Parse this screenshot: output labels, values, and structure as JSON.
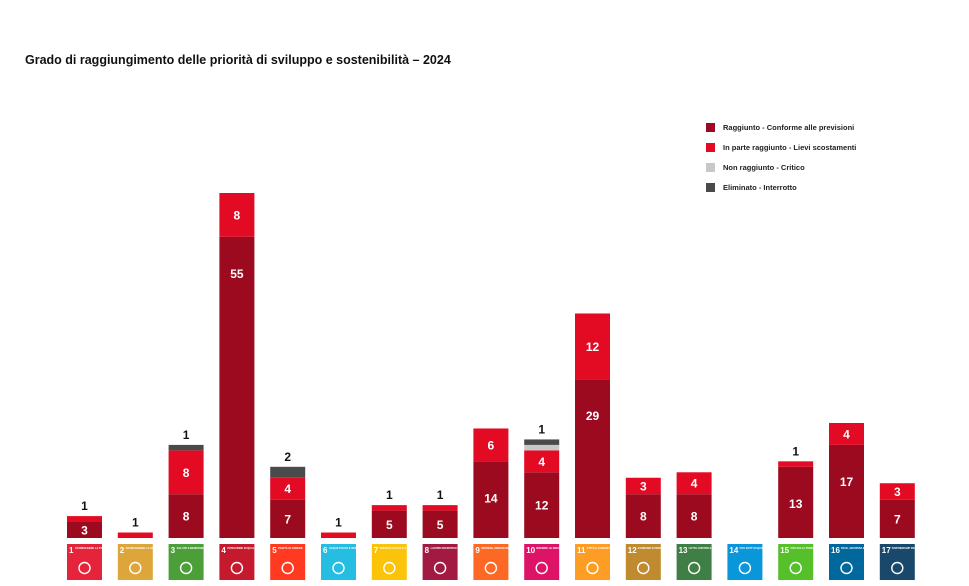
{
  "chart_data": {
    "type": "bar",
    "stacked": true,
    "title": "Grado di raggiungimento delle priorità di sviluppo e sostenibilità – 2024",
    "xlabel": "",
    "ylabel": "",
    "ylim": [
      0,
      63
    ],
    "grid": false,
    "legend_position": "top-right",
    "categories": [
      "1",
      "2",
      "3",
      "4",
      "5",
      "6",
      "7",
      "8",
      "9",
      "10",
      "11",
      "12",
      "13",
      "14",
      "15",
      "16",
      "17"
    ],
    "category_labels": [
      "Sconfiggere la povertà",
      "Sconfiggere la fame",
      "Salute e benessere",
      "Istruzione di qualità",
      "Parità di genere",
      "Acqua pulita e servizi igienico-sanitari",
      "Energia pulita e accessibile",
      "Lavoro dignitoso e crescita economica",
      "Imprese, innovazione e infrastrutture",
      "Ridurre le disuguaglianze",
      "Città e comunità sostenibili",
      "Consumo e produzione responsabili",
      "Lotta contro il cambiamento climatico",
      "Vita sott'acqua",
      "Vita sulla terra",
      "Pace, giustizia e istituzioni solide",
      "Partnership per gli obiettivi"
    ],
    "icon_colors": [
      "#e5243b",
      "#dda63a",
      "#4c9f38",
      "#c5192d",
      "#ff3a21",
      "#26bde2",
      "#fcc30b",
      "#a21942",
      "#fd6925",
      "#dd1367",
      "#fd9d24",
      "#bf8b2e",
      "#3f7e44",
      "#0a97d9",
      "#56c02b",
      "#00689d",
      "#19486a"
    ],
    "series": [
      {
        "name": "Raggiunto - Conforme alle previsioni",
        "color": "#9b0a1e",
        "values": [
          3,
          0,
          8,
          55,
          7,
          0,
          5,
          5,
          14,
          12,
          29,
          8,
          8,
          0,
          13,
          17,
          7
        ]
      },
      {
        "name": "In parte raggiunto - Lievi scostamenti",
        "color": "#e30a24",
        "values": [
          1,
          1,
          8,
          8,
          4,
          1,
          1,
          1,
          6,
          4,
          12,
          3,
          4,
          0,
          1,
          4,
          3
        ]
      },
      {
        "name": "Non raggiunto - Critico",
        "color": "#c8c8c8",
        "values": [
          0,
          0,
          0,
          0,
          0,
          0,
          0,
          0,
          0,
          1,
          0,
          0,
          0,
          0,
          0,
          0,
          0
        ]
      },
      {
        "name": "Eliminato - Interrotto",
        "color": "#4a4a4a",
        "values": [
          0,
          0,
          1,
          0,
          2,
          0,
          0,
          0,
          0,
          1,
          0,
          0,
          0,
          0,
          0,
          0,
          0
        ]
      }
    ],
    "top_labels": [
      "1",
      "1",
      "1",
      "",
      "2",
      "1",
      "1",
      "1",
      "",
      "1",
      "",
      "",
      "",
      "",
      "1",
      "",
      ""
    ]
  }
}
